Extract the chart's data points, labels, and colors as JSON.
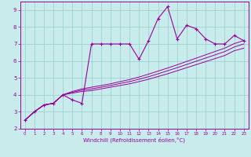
{
  "xlabel": "Windchill (Refroidissement éolien,°C)",
  "bg_color": "#c8ecec",
  "line_color": "#990099",
  "grid_color": "#99cccc",
  "x_data": [
    0,
    1,
    2,
    3,
    4,
    5,
    6,
    7,
    8,
    9,
    10,
    11,
    12,
    13,
    14,
    15,
    16,
    17,
    18,
    19,
    20,
    21,
    22,
    23
  ],
  "y_main": [
    2.5,
    3.0,
    3.4,
    3.5,
    4.0,
    3.7,
    3.5,
    7.0,
    7.0,
    7.0,
    7.0,
    7.0,
    6.1,
    7.2,
    8.5,
    9.2,
    7.3,
    8.1,
    7.9,
    7.3,
    7.0,
    7.0,
    7.5,
    7.2
  ],
  "y_line1": [
    2.5,
    3.0,
    3.4,
    3.5,
    4.0,
    4.1,
    4.2,
    4.25,
    4.35,
    4.45,
    4.55,
    4.65,
    4.78,
    4.92,
    5.08,
    5.24,
    5.42,
    5.6,
    5.78,
    5.96,
    6.14,
    6.32,
    6.6,
    6.75
  ],
  "y_line2": [
    2.5,
    3.0,
    3.4,
    3.5,
    4.0,
    4.15,
    4.28,
    4.35,
    4.45,
    4.55,
    4.67,
    4.78,
    4.92,
    5.07,
    5.24,
    5.42,
    5.6,
    5.79,
    5.98,
    6.17,
    6.36,
    6.55,
    6.82,
    7.0
  ],
  "y_line3": [
    2.5,
    3.0,
    3.4,
    3.5,
    4.0,
    4.2,
    4.35,
    4.45,
    4.55,
    4.65,
    4.78,
    4.9,
    5.05,
    5.22,
    5.4,
    5.58,
    5.77,
    5.97,
    6.16,
    6.36,
    6.56,
    6.75,
    7.02,
    7.2
  ],
  "ylim": [
    2,
    9.5
  ],
  "xlim": [
    -0.5,
    23.5
  ],
  "yticks": [
    2,
    3,
    4,
    5,
    6,
    7,
    8,
    9
  ],
  "xticks": [
    0,
    1,
    2,
    3,
    4,
    5,
    6,
    7,
    8,
    9,
    10,
    11,
    12,
    13,
    14,
    15,
    16,
    17,
    18,
    19,
    20,
    21,
    22,
    23
  ]
}
